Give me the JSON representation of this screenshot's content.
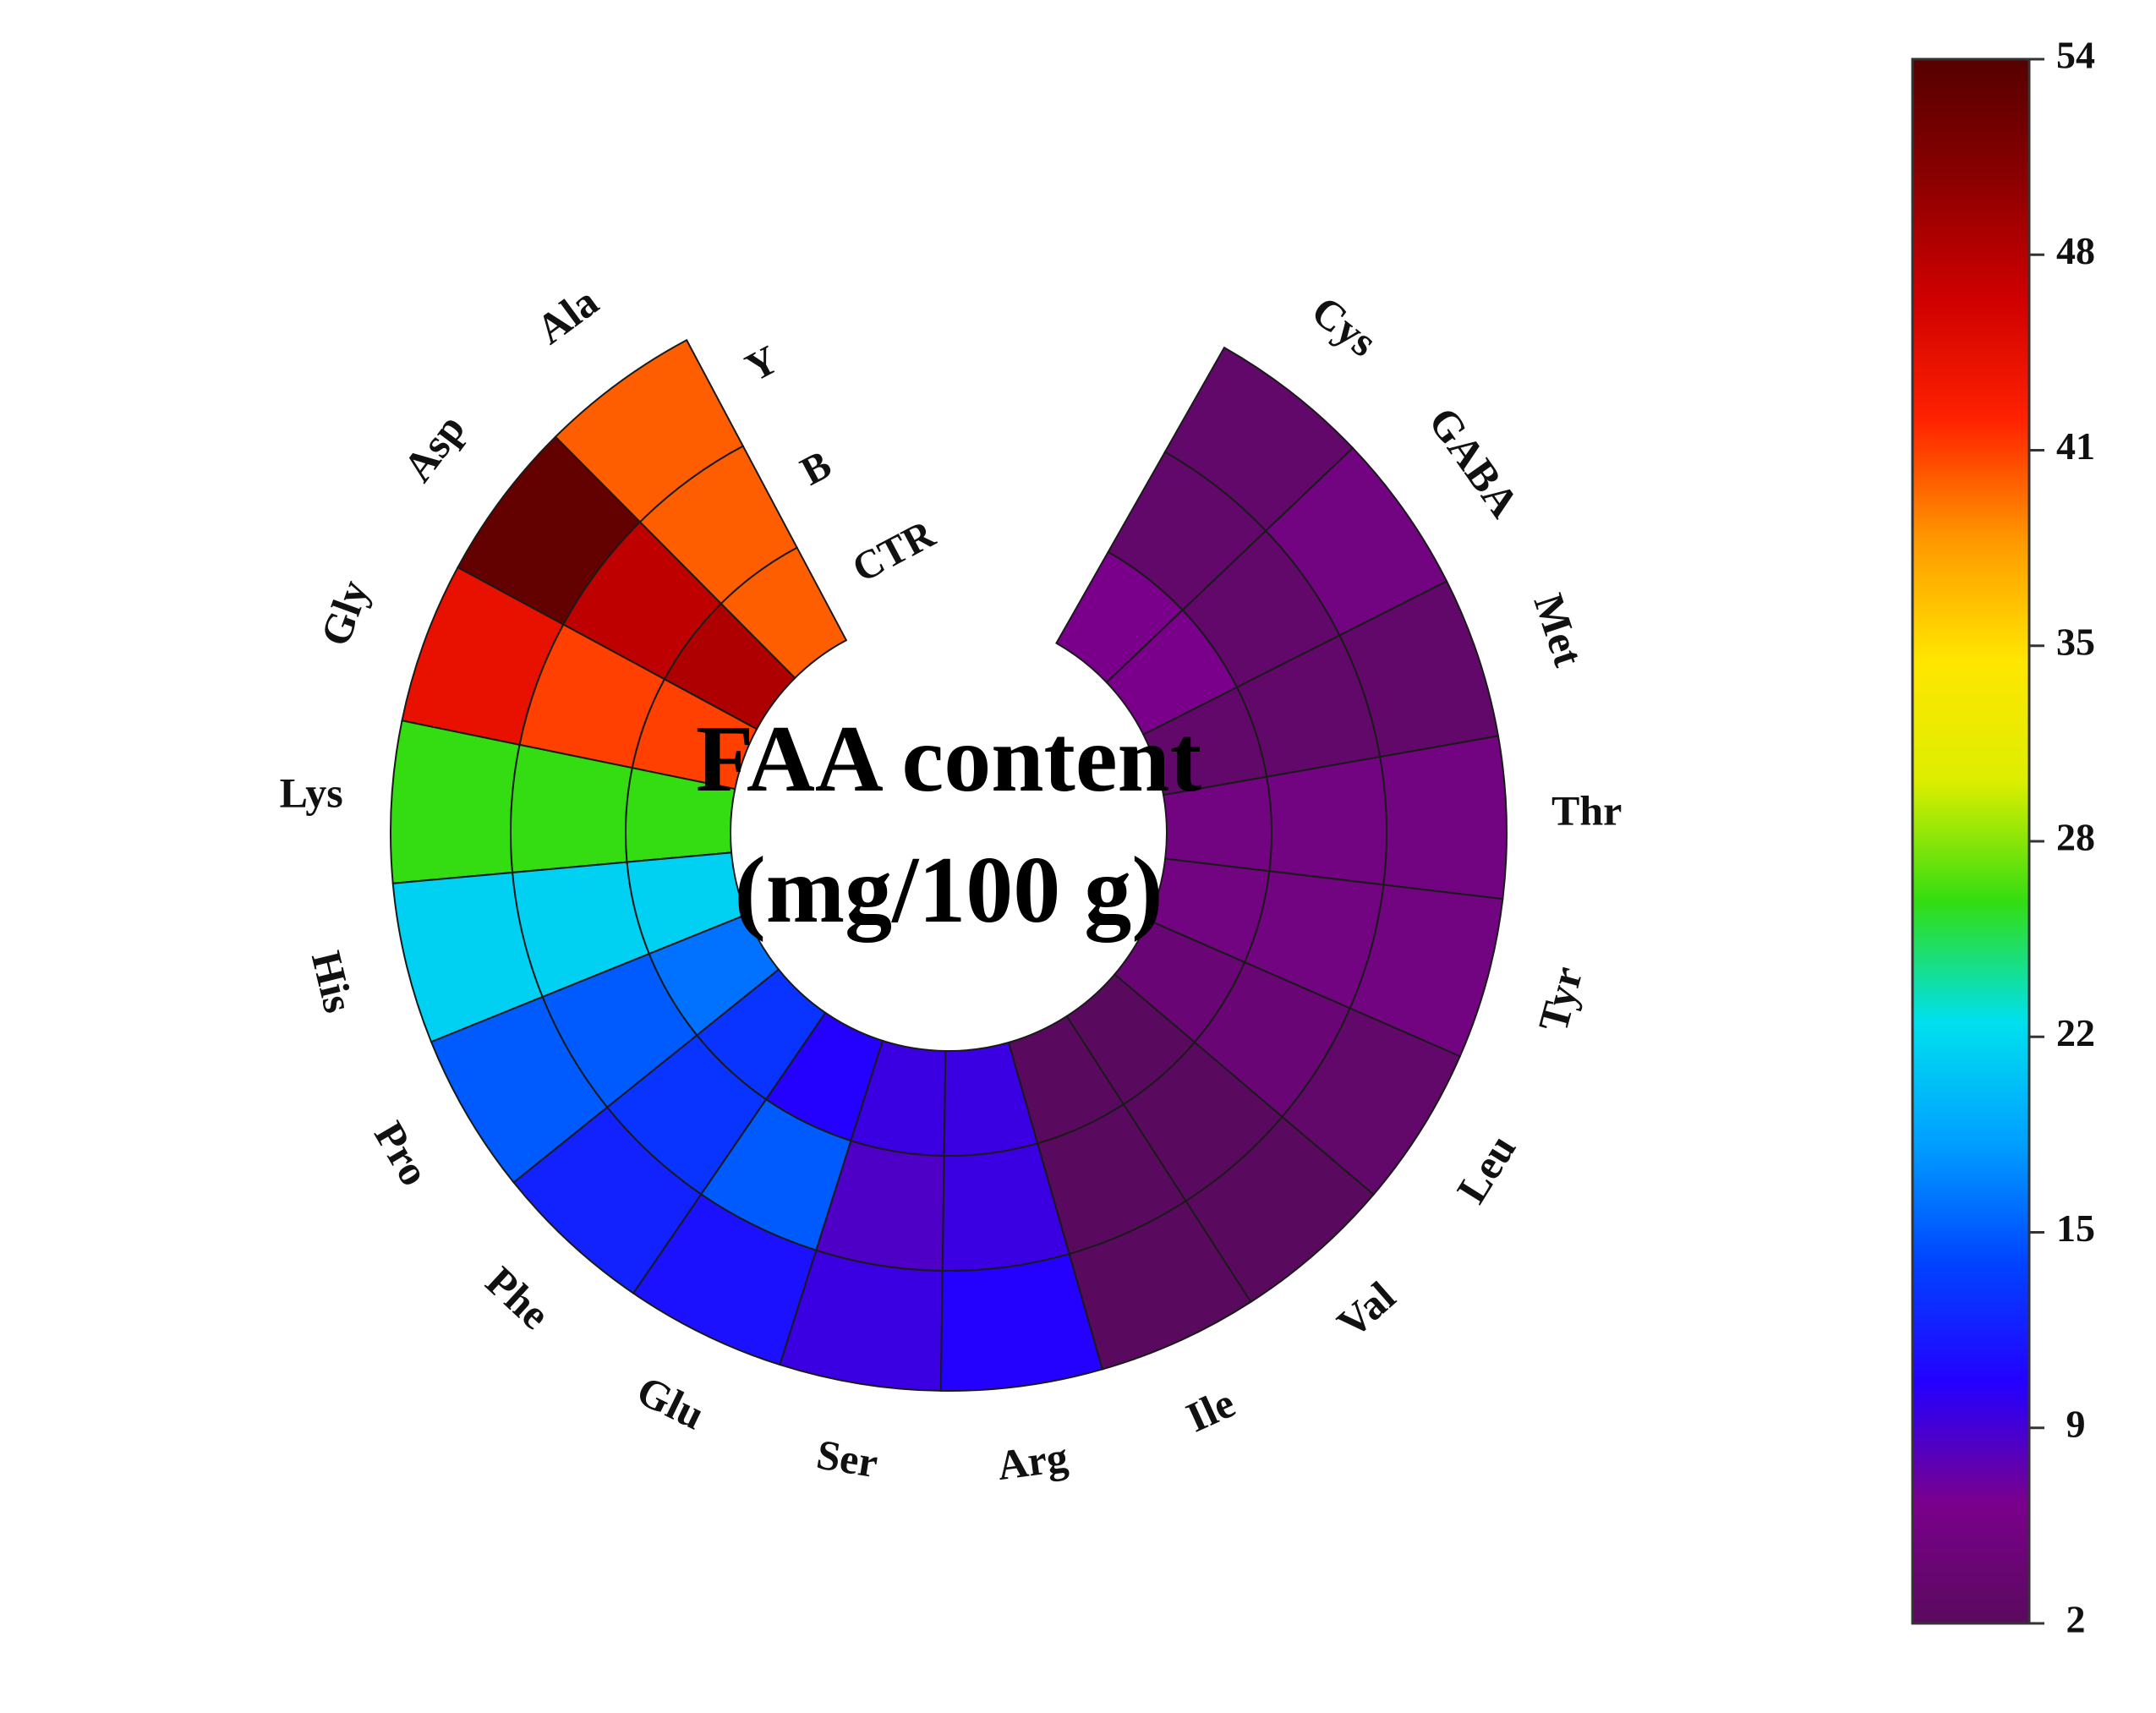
{
  "chart_data": {
    "type": "heatmap",
    "subtype": "circular-heatmap",
    "title_lines": [
      "FAA content",
      "(mg/100 g)"
    ],
    "rings_outer_to_inner": [
      "Y",
      "B",
      "CTR"
    ],
    "categories": [
      "Ala",
      "Asp",
      "Gly",
      "Lys",
      "His",
      "Pro",
      "Phe",
      "Glu",
      "Ser",
      "Arg",
      "Ile",
      "Val",
      "Leu",
      "Tyr",
      "Thr",
      "Met",
      "GABA",
      "Cys"
    ],
    "series": [
      {
        "name": "Y",
        "values": [
          40,
          53,
          44,
          26,
          21,
          15,
          12,
          11,
          9,
          10,
          2,
          2,
          3,
          5,
          5,
          3,
          5,
          3
        ]
      },
      {
        "name": "B",
        "values": [
          40,
          47,
          41,
          26,
          21,
          15,
          13,
          15,
          8,
          9,
          2,
          2,
          4,
          5,
          5,
          3,
          3,
          3
        ]
      },
      {
        "name": "CTR",
        "values": [
          40,
          48,
          41,
          26,
          21,
          16,
          13,
          10,
          9,
          9,
          2,
          2,
          4,
          5,
          5,
          3,
          6,
          6
        ]
      }
    ],
    "colorbar": {
      "min": 2,
      "max": 54,
      "ticks": [
        "2",
        "9",
        "15",
        "22",
        "28",
        "35",
        "41",
        "48",
        "54"
      ],
      "colormap": [
        "#5a0a5e",
        "#7a008c",
        "#2400ff",
        "#0044ff",
        "#00a0ff",
        "#00e0ee",
        "#33dd11",
        "#ddee00",
        "#ffe600",
        "#ff9900",
        "#ff2200",
        "#d00000",
        "#8b0000",
        "#550000"
      ]
    },
    "grid": true,
    "legend_position": "right"
  }
}
